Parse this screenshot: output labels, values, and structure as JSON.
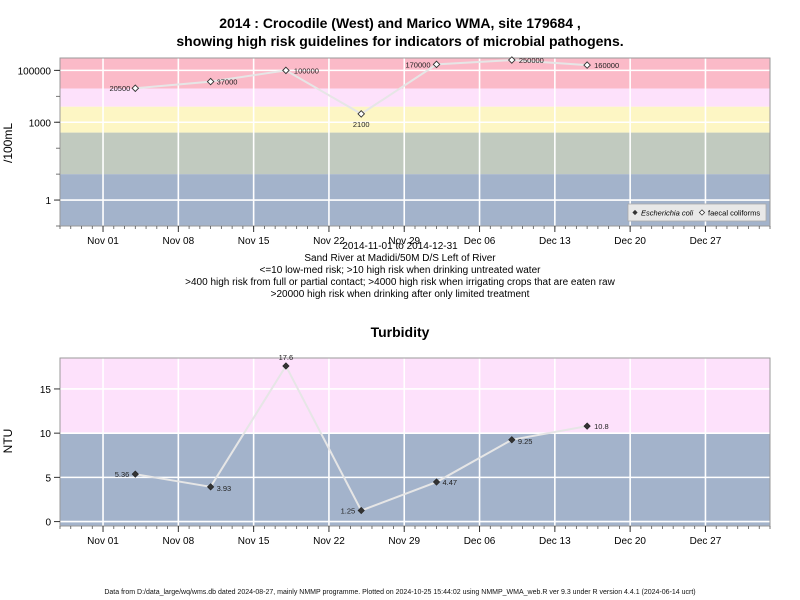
{
  "chart_data": [
    {
      "type": "line",
      "title": "2014 : Crocodile (West) and Marico WMA, site 179684 ,",
      "subtitle": "showing high risk guidelines for indicators of microbial pathogens.",
      "ylabel": "/100mL",
      "yscale": "log",
      "ylim": [
        0.1,
        300000
      ],
      "xlim": [
        "2014-10-28",
        "2015-01-02"
      ],
      "x_ticks": [
        "Nov 01",
        "Nov 08",
        "Nov 15",
        "Nov 22",
        "Nov 29",
        "Dec 06",
        "Dec 13",
        "Dec 20",
        "Dec 27"
      ],
      "x_tick_dates": [
        "2014-11-01",
        "2014-11-08",
        "2014-11-15",
        "2014-11-22",
        "2014-11-29",
        "2014-12-06",
        "2014-12-13",
        "2014-12-20",
        "2014-12-27"
      ],
      "y_ticks": [
        1,
        1000,
        100000
      ],
      "y_tick_labels": [
        "1",
        "1000",
        "100000"
      ],
      "bands": [
        {
          "from": 0.1,
          "to": 10,
          "color": "#a3b3cb"
        },
        {
          "from": 10,
          "to": 400,
          "color": "#c1cabf"
        },
        {
          "from": 400,
          "to": 4000,
          "color": "#fdf6c4"
        },
        {
          "from": 4000,
          "to": 20000,
          "color": "#fde1fb"
        },
        {
          "from": 20000,
          "to": 300000,
          "color": "#fbbac8"
        }
      ],
      "series": [
        {
          "name": "faecal coliforms",
          "marker": "open-diamond",
          "x": [
            "2014-11-04",
            "2014-11-11",
            "2014-11-18",
            "2014-11-25",
            "2014-12-02",
            "2014-12-09",
            "2014-12-16"
          ],
          "values": [
            20500,
            37000,
            100000,
            2100,
            170000,
            250000,
            160000
          ],
          "labels": [
            "20500",
            "37000",
            "100000",
            "2100",
            "170000",
            "250000",
            "160000"
          ]
        }
      ],
      "legend": {
        "position": "bottom-right",
        "entries": [
          {
            "label": "Escherichia coli",
            "marker": "filled-diamond"
          },
          {
            "label": "faecal coliforms",
            "marker": "open-diamond"
          }
        ]
      },
      "notes": [
        "2014-11-01 to 2014-12-31",
        "Sand River at Madidi/50M D/S Left of River",
        "<=10 low-med risk; >10 high risk when drinking untreated water",
        ">400 high risk from full or partial contact; >4000 high risk when irrigating crops that are eaten raw",
        ">20000 high risk when drinking after only limited treatment"
      ],
      "grid": true
    },
    {
      "type": "line",
      "title": "Turbidity",
      "ylabel": "NTU",
      "ylim": [
        -0.5,
        18.5
      ],
      "xlim": [
        "2014-10-28",
        "2015-01-02"
      ],
      "x_ticks": [
        "Nov 01",
        "Nov 08",
        "Nov 15",
        "Nov 22",
        "Nov 29",
        "Dec 06",
        "Dec 13",
        "Dec 20",
        "Dec 27"
      ],
      "x_tick_dates": [
        "2014-11-01",
        "2014-11-08",
        "2014-11-15",
        "2014-11-22",
        "2014-11-29",
        "2014-12-06",
        "2014-12-13",
        "2014-12-20",
        "2014-12-27"
      ],
      "y_ticks": [
        0,
        5,
        10,
        15
      ],
      "y_tick_labels": [
        "0",
        "5",
        "10",
        "15"
      ],
      "bands": [
        {
          "from": -0.5,
          "to": 10,
          "color": "#a3b3cb"
        },
        {
          "from": 10,
          "to": 18.5,
          "color": "#fde1fb"
        }
      ],
      "series": [
        {
          "marker": "filled-diamond",
          "x": [
            "2014-11-04",
            "2014-11-11",
            "2014-11-18",
            "2014-11-25",
            "2014-12-02",
            "2014-12-09",
            "2014-12-16"
          ],
          "values": [
            5.36,
            3.93,
            17.6,
            1.25,
            4.47,
            9.25,
            10.8
          ],
          "labels": [
            "5.36",
            "3.93",
            "17.6",
            "1.25",
            "4.47",
            "9.25",
            "10.8"
          ]
        }
      ],
      "grid": true
    }
  ],
  "footer": "Data from D:/data_large/wq/wms.db dated 2024-08-27, mainly NMMP programme. Plotted on 2024-10-25 15:44:02 using NMMP_WMA_web.R ver 9.3 under R version 4.4.1 (2024-06-14 ucrt)"
}
